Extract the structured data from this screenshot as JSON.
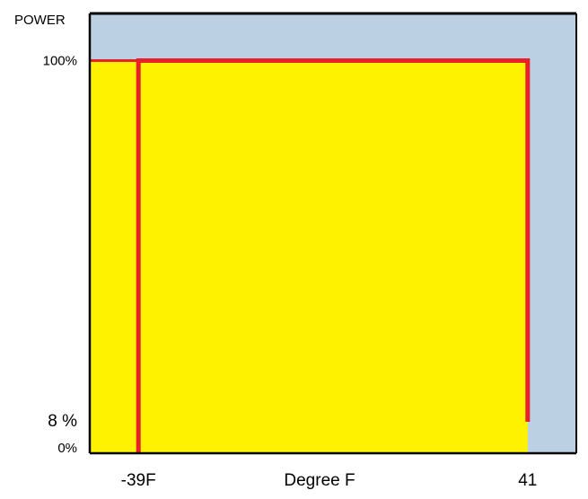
{
  "chart_data": {
    "type": "area",
    "title": "",
    "ylabel": "POWER",
    "xlabel": "Degree F",
    "y_tick_labels": [
      {
        "value": 100,
        "text": "100%"
      },
      {
        "value": 8,
        "text": "8 %"
      },
      {
        "value": 0,
        "text": "0%"
      }
    ],
    "x_tick_labels": [
      {
        "value": -39,
        "text": "-39F"
      },
      {
        "value": 41,
        "text": "41"
      }
    ],
    "xlim": [
      -49,
      51
    ],
    "ylim": [
      0,
      112
    ],
    "grid": false,
    "series": [
      {
        "x": [
          -39,
          -39,
          41,
          41
        ],
        "y": [
          0,
          100,
          100,
          8
        ]
      }
    ],
    "colors": {
      "background_region": "#bcd0e4",
      "fill_region": "#fff200",
      "line": "#e8202a",
      "axes": "#000000"
    }
  }
}
